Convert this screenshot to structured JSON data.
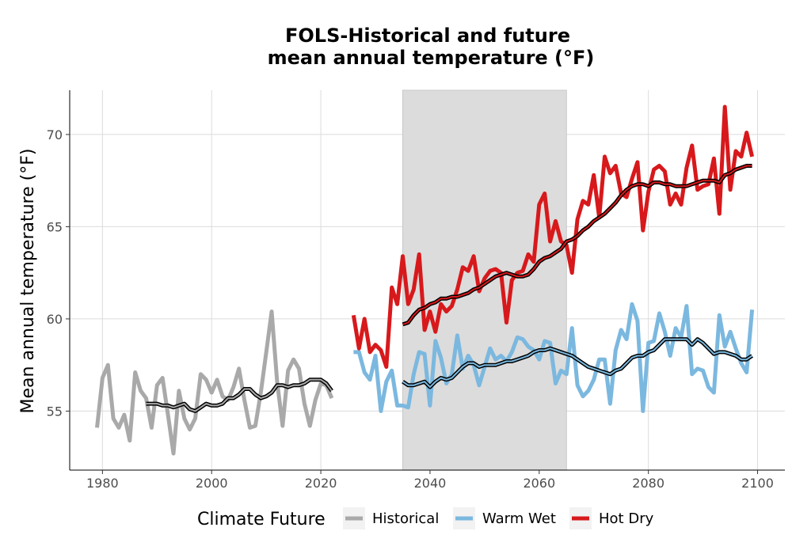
{
  "chart_data": {
    "type": "line",
    "title_lines": [
      "FOLS-Historical and future",
      "mean annual temperature (°F)"
    ],
    "xlabel": "",
    "ylabel": "Mean annual temperature (°F)",
    "xlim": [
      1974,
      2105
    ],
    "ylim": [
      51.8,
      72.4
    ],
    "x_ticks": [
      1980,
      2000,
      2020,
      2040,
      2060,
      2080,
      2100
    ],
    "y_ticks": [
      55,
      60,
      65,
      70
    ],
    "grid": true,
    "shaded_period": [
      2035,
      2065
    ],
    "legend": {
      "title": "Climate Future",
      "position": "bottom",
      "entries": [
        "Historical",
        "Warm Wet",
        "Hot Dry"
      ]
    },
    "colors": {
      "Historical": "#a9a9a9",
      "Warm Wet": "#7bb8df",
      "Hot Dry": "#d7191c",
      "smooth": "#000000",
      "shade": "#dcdcdc"
    },
    "series": [
      {
        "name": "Historical",
        "x": [
          1979,
          1980,
          1981,
          1982,
          1983,
          1984,
          1985,
          1986,
          1987,
          1988,
          1989,
          1990,
          1991,
          1992,
          1993,
          1994,
          1995,
          1996,
          1997,
          1998,
          1999,
          2000,
          2001,
          2002,
          2003,
          2004,
          2005,
          2006,
          2007,
          2008,
          2009,
          2010,
          2011,
          2012,
          2013,
          2014,
          2015,
          2016,
          2017,
          2018,
          2019,
          2020,
          2021,
          2022
        ],
        "values": [
          54.1,
          56.8,
          57.5,
          54.6,
          54.1,
          54.8,
          53.4,
          57.1,
          56.1,
          55.7,
          54.1,
          56.4,
          56.8,
          54.8,
          52.7,
          56.1,
          54.6,
          54.0,
          54.6,
          57.0,
          56.7,
          56.0,
          56.7,
          55.8,
          55.6,
          56.3,
          57.3,
          55.6,
          54.1,
          54.2,
          56.0,
          58.2,
          60.4,
          56.6,
          54.2,
          57.2,
          57.8,
          57.3,
          55.4,
          54.2,
          55.6,
          56.5,
          56.4,
          55.7
        ],
        "smooth_x": [
          1988,
          1989,
          1990,
          1991,
          1992,
          1993,
          1994,
          1995,
          1996,
          1997,
          1998,
          1999,
          2000,
          2001,
          2002,
          2003,
          2004,
          2005,
          2006,
          2007,
          2008,
          2009,
          2010,
          2011,
          2012,
          2013,
          2014,
          2015,
          2016,
          2017,
          2018,
          2019,
          2020,
          2021,
          2022
        ],
        "smooth": [
          55.4,
          55.4,
          55.4,
          55.3,
          55.3,
          55.2,
          55.3,
          55.4,
          55.1,
          55.0,
          55.2,
          55.4,
          55.3,
          55.3,
          55.4,
          55.7,
          55.7,
          55.9,
          56.2,
          56.2,
          55.9,
          55.7,
          55.8,
          56.0,
          56.4,
          56.4,
          56.3,
          56.4,
          56.4,
          56.5,
          56.7,
          56.7,
          56.7,
          56.5,
          56.1
        ]
      },
      {
        "name": "Warm Wet",
        "x": [
          2026,
          2027,
          2028,
          2029,
          2030,
          2031,
          2032,
          2033,
          2034,
          2035,
          2036,
          2037,
          2038,
          2039,
          2040,
          2041,
          2042,
          2043,
          2044,
          2045,
          2046,
          2047,
          2048,
          2049,
          2050,
          2051,
          2052,
          2053,
          2054,
          2055,
          2056,
          2057,
          2058,
          2059,
          2060,
          2061,
          2062,
          2063,
          2064,
          2065,
          2066,
          2067,
          2068,
          2069,
          2070,
          2071,
          2072,
          2073,
          2074,
          2075,
          2076,
          2077,
          2078,
          2079,
          2080,
          2081,
          2082,
          2083,
          2084,
          2085,
          2086,
          2087,
          2088,
          2089,
          2090,
          2091,
          2092,
          2093,
          2094,
          2095,
          2096,
          2097,
          2098,
          2099
        ],
        "values": [
          58.2,
          58.2,
          57.1,
          56.7,
          58.0,
          55.0,
          56.6,
          57.2,
          55.3,
          55.3,
          55.2,
          57.0,
          58.2,
          58.1,
          55.3,
          58.8,
          57.9,
          56.5,
          57.0,
          59.1,
          57.3,
          58.0,
          57.5,
          56.4,
          57.4,
          58.4,
          57.8,
          58.0,
          57.7,
          58.2,
          59.0,
          58.9,
          58.5,
          58.3,
          57.8,
          58.8,
          58.7,
          56.5,
          57.2,
          57.0,
          59.5,
          56.4,
          55.8,
          56.1,
          56.7,
          57.8,
          57.8,
          55.4,
          58.3,
          59.4,
          58.9,
          60.8,
          59.9,
          55.0,
          58.7,
          58.8,
          60.3,
          59.3,
          58.0,
          59.5,
          59.0,
          60.7,
          57.0,
          57.3,
          57.2,
          56.3,
          56.0,
          60.2,
          58.5,
          59.3,
          58.4,
          57.6,
          57.1,
          60.5
        ],
        "smooth_x": [
          2035,
          2036,
          2037,
          2038,
          2039,
          2040,
          2041,
          2042,
          2043,
          2044,
          2045,
          2046,
          2047,
          2048,
          2049,
          2050,
          2051,
          2052,
          2053,
          2054,
          2055,
          2056,
          2057,
          2058,
          2059,
          2060,
          2061,
          2062,
          2063,
          2064,
          2065,
          2066,
          2067,
          2068,
          2069,
          2070,
          2071,
          2072,
          2073,
          2074,
          2075,
          2076,
          2077,
          2078,
          2079,
          2080,
          2081,
          2082,
          2083,
          2084,
          2085,
          2086,
          2087,
          2088,
          2089,
          2090,
          2091,
          2092,
          2093,
          2094,
          2095,
          2096,
          2097,
          2098,
          2099
        ],
        "smooth": [
          56.6,
          56.4,
          56.4,
          56.5,
          56.6,
          56.3,
          56.6,
          56.8,
          56.7,
          56.8,
          57.1,
          57.4,
          57.6,
          57.6,
          57.4,
          57.5,
          57.5,
          57.5,
          57.6,
          57.7,
          57.7,
          57.8,
          57.9,
          58.0,
          58.2,
          58.3,
          58.3,
          58.4,
          58.3,
          58.2,
          58.1,
          58.0,
          57.8,
          57.6,
          57.4,
          57.3,
          57.2,
          57.1,
          57.0,
          57.2,
          57.3,
          57.6,
          57.9,
          58.0,
          58.0,
          58.2,
          58.3,
          58.6,
          58.9,
          58.9,
          58.9,
          58.9,
          58.9,
          58.6,
          58.9,
          58.7,
          58.4,
          58.1,
          58.2,
          58.2,
          58.1,
          58.0,
          57.8,
          57.8,
          58.0
        ]
      },
      {
        "name": "Hot Dry",
        "x": [
          2026,
          2027,
          2028,
          2029,
          2030,
          2031,
          2032,
          2033,
          2034,
          2035,
          2036,
          2037,
          2038,
          2039,
          2040,
          2041,
          2042,
          2043,
          2044,
          2045,
          2046,
          2047,
          2048,
          2049,
          2050,
          2051,
          2052,
          2053,
          2054,
          2055,
          2056,
          2057,
          2058,
          2059,
          2060,
          2061,
          2062,
          2063,
          2064,
          2065,
          2066,
          2067,
          2068,
          2069,
          2070,
          2071,
          2072,
          2073,
          2074,
          2075,
          2076,
          2077,
          2078,
          2079,
          2080,
          2081,
          2082,
          2083,
          2084,
          2085,
          2086,
          2087,
          2088,
          2089,
          2090,
          2091,
          2092,
          2093,
          2094,
          2095,
          2096,
          2097,
          2098,
          2099
        ],
        "values": [
          60.2,
          58.4,
          60.0,
          58.2,
          58.6,
          58.3,
          57.4,
          61.7,
          60.8,
          63.4,
          60.8,
          61.6,
          63.5,
          59.4,
          60.4,
          59.3,
          60.8,
          60.4,
          60.7,
          61.6,
          62.8,
          62.6,
          63.4,
          61.5,
          62.2,
          62.6,
          62.7,
          62.5,
          59.8,
          62.1,
          62.5,
          62.6,
          63.5,
          63.1,
          66.2,
          66.8,
          64.2,
          65.3,
          64.2,
          64.0,
          62.5,
          65.4,
          66.4,
          66.2,
          67.8,
          65.5,
          68.8,
          67.9,
          68.3,
          66.8,
          66.6,
          67.6,
          68.5,
          64.8,
          66.9,
          68.1,
          68.3,
          68.0,
          66.2,
          66.8,
          66.2,
          68.2,
          69.4,
          67.0,
          67.2,
          67.3,
          68.7,
          65.7,
          71.5,
          67.0,
          69.1,
          68.8,
          70.1,
          68.8
        ],
        "smooth_x": [
          2035,
          2036,
          2037,
          2038,
          2039,
          2040,
          2041,
          2042,
          2043,
          2044,
          2045,
          2046,
          2047,
          2048,
          2049,
          2050,
          2051,
          2052,
          2053,
          2054,
          2055,
          2056,
          2057,
          2058,
          2059,
          2060,
          2061,
          2062,
          2063,
          2064,
          2065,
          2066,
          2067,
          2068,
          2069,
          2070,
          2071,
          2072,
          2073,
          2074,
          2075,
          2076,
          2077,
          2078,
          2079,
          2080,
          2081,
          2082,
          2083,
          2084,
          2085,
          2086,
          2087,
          2088,
          2089,
          2090,
          2091,
          2092,
          2093,
          2094,
          2095,
          2096,
          2097,
          2098,
          2099
        ],
        "smooth": [
          59.7,
          59.8,
          60.2,
          60.5,
          60.6,
          60.8,
          60.9,
          61.1,
          61.1,
          61.2,
          61.2,
          61.3,
          61.4,
          61.6,
          61.7,
          61.9,
          62.1,
          62.3,
          62.4,
          62.5,
          62.4,
          62.3,
          62.3,
          62.4,
          62.7,
          63.1,
          63.3,
          63.4,
          63.6,
          63.8,
          64.2,
          64.3,
          64.5,
          64.8,
          65.0,
          65.3,
          65.5,
          65.7,
          66.0,
          66.3,
          66.7,
          67.0,
          67.2,
          67.3,
          67.3,
          67.2,
          67.4,
          67.4,
          67.3,
          67.3,
          67.2,
          67.2,
          67.2,
          67.3,
          67.4,
          67.5,
          67.5,
          67.5,
          67.4,
          67.8,
          67.9,
          68.1,
          68.2,
          68.3,
          68.3
        ]
      }
    ]
  }
}
